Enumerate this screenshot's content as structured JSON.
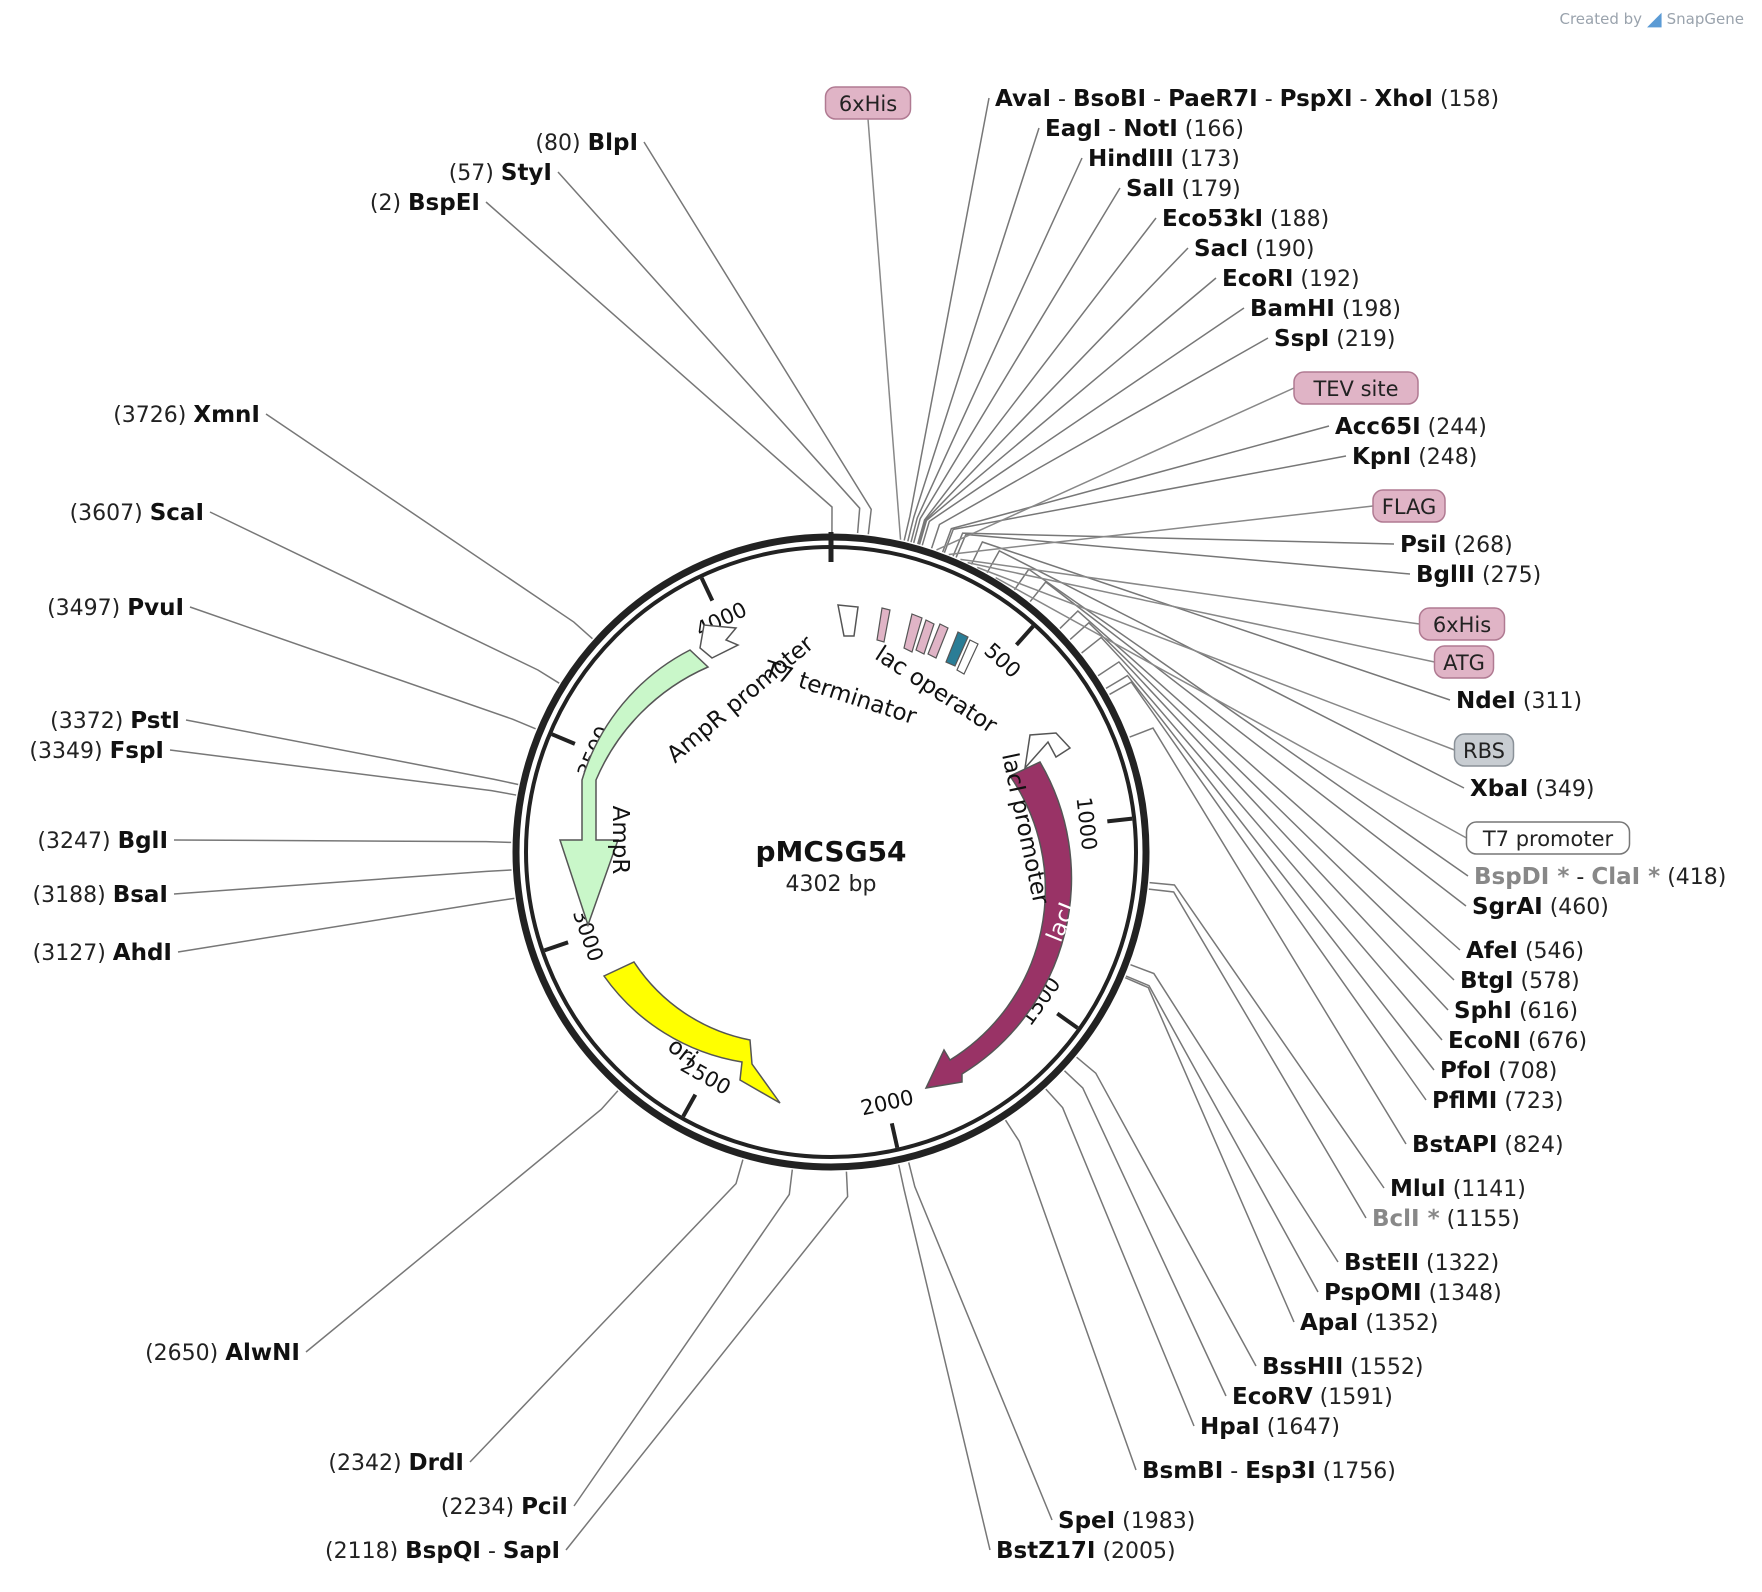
{
  "credit": {
    "prefix": "Created by",
    "brand": "SnapGene"
  },
  "plasmid": {
    "name": "pMCSG54",
    "size": "4302 bp",
    "length": 4302
  },
  "ticks": [
    "500",
    "1000",
    "1500",
    "2000",
    "2500",
    "3000",
    "3500",
    "4000"
  ],
  "enzymes": [
    {
      "id": "ava",
      "parts": [
        "AvaI",
        "BsoBI",
        "PaeR7I",
        "PspXI",
        "XhoI"
      ],
      "pos": "(158)",
      "site": 158,
      "side": "right"
    },
    {
      "id": "eag",
      "parts": [
        "EagI",
        "NotI"
      ],
      "pos": "(166)",
      "site": 166,
      "side": "right"
    },
    {
      "id": "hind",
      "parts": [
        "HindIII"
      ],
      "pos": "(173)",
      "site": 173,
      "side": "right"
    },
    {
      "id": "sal",
      "parts": [
        "SalI"
      ],
      "pos": "(179)",
      "site": 179,
      "side": "right"
    },
    {
      "id": "eco53",
      "parts": [
        "Eco53kI"
      ],
      "pos": "(188)",
      "site": 188,
      "side": "right"
    },
    {
      "id": "sac",
      "parts": [
        "SacI"
      ],
      "pos": "(190)",
      "site": 190,
      "side": "right"
    },
    {
      "id": "ecori",
      "parts": [
        "EcoRI"
      ],
      "pos": "(192)",
      "site": 192,
      "side": "right"
    },
    {
      "id": "bam",
      "parts": [
        "BamHI"
      ],
      "pos": "(198)",
      "site": 198,
      "side": "right"
    },
    {
      "id": "ssp",
      "parts": [
        "SspI"
      ],
      "pos": "(219)",
      "site": 219,
      "side": "right"
    },
    {
      "id": "acc65",
      "parts": [
        "Acc65I"
      ],
      "pos": "(244)",
      "site": 244,
      "side": "right"
    },
    {
      "id": "kpn",
      "parts": [
        "KpnI"
      ],
      "pos": "(248)",
      "site": 248,
      "side": "right"
    },
    {
      "id": "psi",
      "parts": [
        "PsiI"
      ],
      "pos": "(268)",
      "site": 268,
      "side": "right"
    },
    {
      "id": "bgl2",
      "parts": [
        "BglII"
      ],
      "pos": "(275)",
      "site": 275,
      "side": "right"
    },
    {
      "id": "nde",
      "parts": [
        "NdeI"
      ],
      "pos": "(311)",
      "site": 311,
      "side": "right"
    },
    {
      "id": "xba",
      "parts": [
        "XbaI"
      ],
      "pos": "(349)",
      "site": 349,
      "side": "right"
    },
    {
      "id": "cla",
      "parts": [
        "BspDI *",
        "ClaI *"
      ],
      "pos": "(418)",
      "site": 418,
      "side": "right",
      "star": true
    },
    {
      "id": "sgra",
      "parts": [
        "SgrAI"
      ],
      "pos": "(460)",
      "site": 460,
      "side": "right"
    },
    {
      "id": "afe",
      "parts": [
        "AfeI"
      ],
      "pos": "(546)",
      "site": 546,
      "side": "right"
    },
    {
      "id": "btg",
      "parts": [
        "BtgI"
      ],
      "pos": "(578)",
      "site": 578,
      "side": "right"
    },
    {
      "id": "sph",
      "parts": [
        "SphI"
      ],
      "pos": "(616)",
      "site": 616,
      "side": "right"
    },
    {
      "id": "econ",
      "parts": [
        "EcoNI"
      ],
      "pos": "(676)",
      "site": 676,
      "side": "right"
    },
    {
      "id": "pfo",
      "parts": [
        "PfoI"
      ],
      "pos": "(708)",
      "site": 708,
      "side": "right"
    },
    {
      "id": "pflm",
      "parts": [
        "PflMI"
      ],
      "pos": "(723)",
      "site": 723,
      "side": "right"
    },
    {
      "id": "bstap",
      "parts": [
        "BstAPI"
      ],
      "pos": "(824)",
      "site": 824,
      "side": "right"
    },
    {
      "id": "mlu",
      "parts": [
        "MluI"
      ],
      "pos": "(1141)",
      "site": 1141,
      "side": "right"
    },
    {
      "id": "bcl",
      "parts": [
        "BclI *"
      ],
      "pos": "(1155)",
      "site": 1155,
      "side": "right",
      "star": true
    },
    {
      "id": "bsteii",
      "parts": [
        "BstEII"
      ],
      "pos": "(1322)",
      "site": 1322,
      "side": "right"
    },
    {
      "id": "pspom",
      "parts": [
        "PspOMI"
      ],
      "pos": "(1348)",
      "site": 1348,
      "side": "right"
    },
    {
      "id": "apa",
      "parts": [
        "ApaI"
      ],
      "pos": "(1352)",
      "site": 1352,
      "side": "right"
    },
    {
      "id": "bsshii",
      "parts": [
        "BssHII"
      ],
      "pos": "(1552)",
      "site": 1552,
      "side": "right"
    },
    {
      "id": "ecorv",
      "parts": [
        "EcoRV"
      ],
      "pos": "(1591)",
      "site": 1591,
      "side": "right"
    },
    {
      "id": "hpa",
      "parts": [
        "HpaI"
      ],
      "pos": "(1647)",
      "site": 1647,
      "side": "right"
    },
    {
      "id": "bsmbi",
      "parts": [
        "BsmBI",
        "Esp3I"
      ],
      "pos": "(1756)",
      "site": 1756,
      "side": "right"
    },
    {
      "id": "spe",
      "parts": [
        "SpeI"
      ],
      "pos": "(1983)",
      "site": 1983,
      "side": "right"
    },
    {
      "id": "bstz",
      "parts": [
        "BstZ17I"
      ],
      "pos": "(2005)",
      "site": 2005,
      "side": "right"
    },
    {
      "id": "sap",
      "parts": [
        "BspQI",
        "SapI"
      ],
      "pos": "(2118)",
      "site": 2118,
      "side": "left"
    },
    {
      "id": "pci",
      "parts": [
        "PciI"
      ],
      "pos": "(2234)",
      "site": 2234,
      "side": "left"
    },
    {
      "id": "drd",
      "parts": [
        "DrdI"
      ],
      "pos": "(2342)",
      "site": 2342,
      "side": "left"
    },
    {
      "id": "alwn",
      "parts": [
        "AlwNI"
      ],
      "pos": "(2650)",
      "site": 2650,
      "side": "left"
    },
    {
      "id": "ahd",
      "parts": [
        "AhdI"
      ],
      "pos": "(3127)",
      "site": 3127,
      "side": "left"
    },
    {
      "id": "bsa",
      "parts": [
        "BsaI"
      ],
      "pos": "(3188)",
      "site": 3188,
      "side": "left"
    },
    {
      "id": "bgl1",
      "parts": [
        "BglI"
      ],
      "pos": "(3247)",
      "site": 3247,
      "side": "left"
    },
    {
      "id": "fsp",
      "parts": [
        "FspI"
      ],
      "pos": "(3349)",
      "site": 3349,
      "side": "left"
    },
    {
      "id": "pst",
      "parts": [
        "PstI"
      ],
      "pos": "(3372)",
      "site": 3372,
      "side": "left"
    },
    {
      "id": "pvu",
      "parts": [
        "PvuI"
      ],
      "pos": "(3497)",
      "site": 3497,
      "side": "left"
    },
    {
      "id": "sca",
      "parts": [
        "ScaI"
      ],
      "pos": "(3607)",
      "site": 3607,
      "side": "left"
    },
    {
      "id": "xmn",
      "parts": [
        "XmnI"
      ],
      "pos": "(3726)",
      "site": 3726,
      "side": "left"
    },
    {
      "id": "bspe",
      "parts": [
        "BspEI"
      ],
      "pos": "(2)",
      "site": 2,
      "side": "left"
    },
    {
      "id": "sty",
      "parts": [
        "StyI"
      ],
      "pos": "(57)",
      "site": 57,
      "side": "left"
    },
    {
      "id": "blp",
      "parts": [
        "BlpI"
      ],
      "pos": "(80)",
      "site": 80,
      "side": "left"
    }
  ],
  "feature_labels": [
    {
      "id": "his1",
      "text": "6xHis",
      "fill": "#e0b4c6",
      "stroke": "#b07a92",
      "site": 150
    },
    {
      "id": "tev",
      "text": "TEV site",
      "fill": "#e0b4c6",
      "stroke": "#b07a92",
      "site": 230
    },
    {
      "id": "flag",
      "text": "FLAG",
      "fill": "#e0b4c6",
      "stroke": "#b07a92",
      "site": 258
    },
    {
      "id": "his2",
      "text": "6xHis",
      "fill": "#e0b4c6",
      "stroke": "#b07a92",
      "site": 285
    },
    {
      "id": "atg",
      "text": "ATG",
      "fill": "#e0b4c6",
      "stroke": "#b07a92",
      "site": 302
    },
    {
      "id": "rbs",
      "text": "RBS",
      "fill": "#c8cdd2",
      "stroke": "#8a9198",
      "site": 325
    },
    {
      "id": "t7p",
      "text": "T7 promoter",
      "fill": "#ffffff",
      "stroke": "#777777",
      "site": 370
    }
  ],
  "features": [
    {
      "id": "ampr",
      "name": "AmpR",
      "color": "#c9f7c9",
      "stroke": "#555"
    },
    {
      "id": "ampr-promoter",
      "name": "AmpR promoter",
      "color": "#ffffff",
      "stroke": "#555"
    },
    {
      "id": "ori",
      "name": "ori",
      "color": "#ffff00",
      "stroke": "#555"
    },
    {
      "id": "laci",
      "name": "lacI",
      "color": "#993366",
      "stroke": "#555"
    },
    {
      "id": "laci-promoter",
      "name": "lacI promoter",
      "color": "#ffffff",
      "stroke": "#555"
    },
    {
      "id": "t7-terminator",
      "name": "T7 terminator",
      "color": "#ffffff",
      "stroke": "#555"
    },
    {
      "id": "lac-operator",
      "name": "lac operator",
      "color": "#ffffff",
      "stroke": "#555"
    }
  ]
}
